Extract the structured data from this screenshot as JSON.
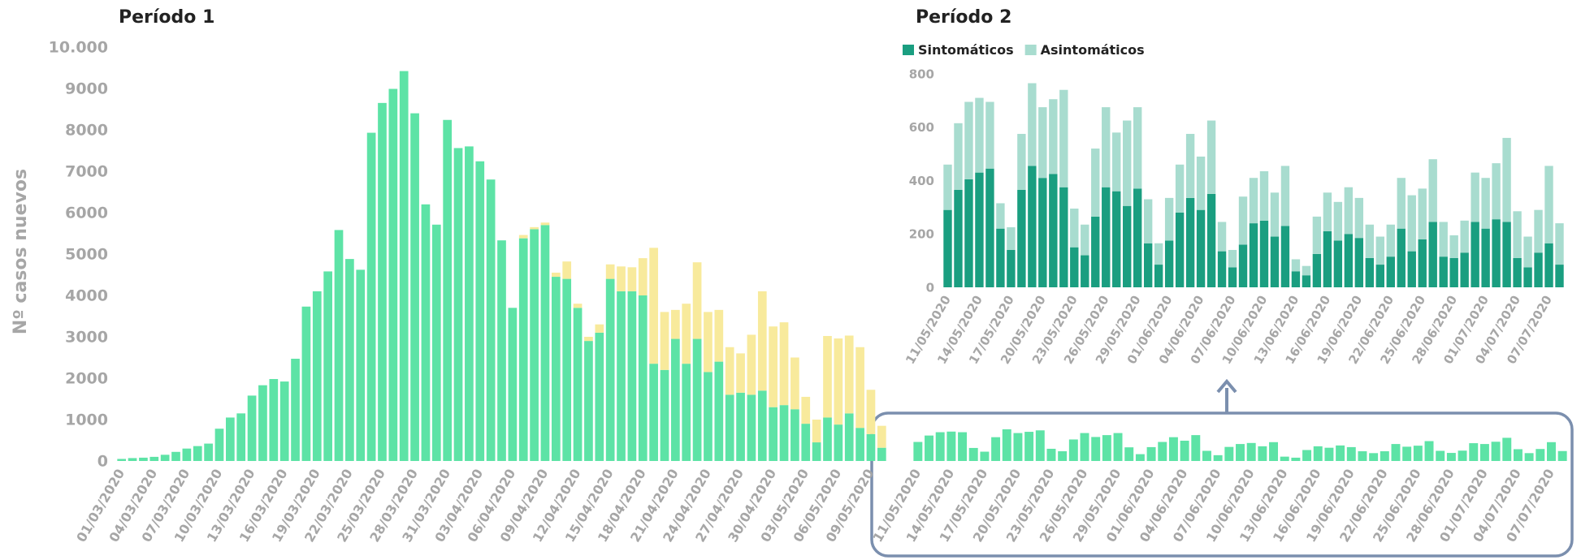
{
  "chart_data": [
    {
      "type": "bar",
      "stacked": true,
      "title": "Período 1",
      "y_label": "Nº casos nuevos",
      "categories": [
        "01/03/2020",
        null,
        null,
        "04/03/2020",
        null,
        null,
        "07/03/2020",
        null,
        null,
        "10/03/2020",
        null,
        null,
        "13/03/2020",
        null,
        null,
        "16/03/2020",
        null,
        null,
        "19/03/2020",
        null,
        null,
        "22/03/2020",
        null,
        null,
        "25/03/2020",
        null,
        null,
        "28/03/2020",
        null,
        null,
        "31/03/2020",
        null,
        null,
        "03/04/2020",
        null,
        null,
        "06/04/2020",
        null,
        null,
        "09/04/2020",
        null,
        null,
        "12/04/2020",
        null,
        null,
        "15/04/2020",
        null,
        null,
        "18/04/2020",
        null,
        null,
        "21/04/2020",
        null,
        null,
        "24/04/2020",
        null,
        null,
        "27/04/2020",
        null,
        null,
        "30/04/2020",
        null,
        null,
        "03/05/2020",
        null,
        null,
        "06/05/2020",
        null,
        null,
        "09/05/2020",
        null
      ],
      "series": [
        {
          "color": "#5de3a6",
          "values": [
            50,
            70,
            80,
            100,
            150,
            220,
            300,
            360,
            420,
            780,
            1050,
            1150,
            1580,
            1830,
            1980,
            1920,
            2470,
            3730,
            4100,
            4580,
            5580,
            4880,
            4620,
            7930,
            8650,
            8990,
            9420,
            8400,
            6200,
            5710,
            8240,
            7560,
            7600,
            7240,
            6800,
            5330,
            3700,
            5380,
            5600,
            5700,
            4450,
            4400,
            3700,
            2900,
            3100,
            4400,
            4100,
            4100,
            4000,
            2350,
            2200,
            2950,
            2350,
            2950,
            2150,
            2400,
            1600,
            1650,
            1600,
            1700,
            1300,
            1350,
            1250,
            900,
            450,
            1050,
            880,
            1150,
            800,
            650,
            320
          ]
        },
        {
          "color": "#f8ea9c",
          "values": [
            0,
            0,
            0,
            0,
            0,
            0,
            0,
            0,
            0,
            0,
            0,
            0,
            0,
            0,
            0,
            0,
            0,
            0,
            0,
            0,
            0,
            0,
            0,
            0,
            0,
            0,
            0,
            0,
            0,
            0,
            0,
            0,
            0,
            0,
            0,
            0,
            0,
            80,
            50,
            60,
            100,
            420,
            100,
            100,
            200,
            350,
            600,
            580,
            900,
            2800,
            1400,
            700,
            1450,
            1850,
            1450,
            1250,
            1150,
            950,
            1450,
            2400,
            1950,
            2000,
            1250,
            650,
            550,
            1970,
            2080,
            1880,
            1950,
            1070,
            530
          ]
        }
      ],
      "ylim": [
        0,
        10000
      ],
      "yticks": [
        0,
        1000,
        2000,
        3000,
        4000,
        5000,
        6000,
        7000,
        8000,
        9000,
        {
          "value": 10000,
          "label": "10.000"
        }
      ]
    },
    {
      "type": "bar",
      "stacked": true,
      "title": "Período 2",
      "legend": "top-left",
      "overview_color": "#5de3a6",
      "categories": [
        "11/05/2020",
        null,
        null,
        "14/05/2020",
        null,
        null,
        "17/05/2020",
        null,
        null,
        "20/05/2020",
        null,
        null,
        "23/05/2020",
        null,
        null,
        "26/05/2020",
        null,
        null,
        "29/05/2020",
        null,
        null,
        "01/06/2020",
        null,
        null,
        "04/06/2020",
        null,
        null,
        "07/06/2020",
        null,
        null,
        "10/06/2020",
        null,
        null,
        "13/06/2020",
        null,
        null,
        "16/06/2020",
        null,
        null,
        "19/06/2020",
        null,
        null,
        "22/06/2020",
        null,
        null,
        "25/06/2020",
        null,
        null,
        "28/06/2020",
        null,
        null,
        "01/07/2020",
        null,
        null,
        "04/07/2020",
        null,
        null,
        "07/07/2020",
        null
      ],
      "series": [
        {
          "name": "Sintomáticos",
          "color": "#1a9e80",
          "values": [
            290,
            365,
            405,
            430,
            445,
            220,
            140,
            365,
            455,
            410,
            425,
            375,
            150,
            120,
            265,
            375,
            360,
            305,
            370,
            165,
            85,
            175,
            280,
            335,
            290,
            350,
            135,
            75,
            160,
            240,
            250,
            190,
            230,
            60,
            45,
            125,
            210,
            175,
            200,
            185,
            110,
            85,
            115,
            220,
            135,
            180,
            245,
            115,
            110,
            130,
            245,
            220,
            255,
            245,
            110,
            75,
            130,
            165,
            85
          ]
        },
        {
          "name": "Asintomáticos",
          "color": "#a8dccf",
          "values": [
            170,
            250,
            290,
            280,
            250,
            95,
            85,
            210,
            310,
            265,
            280,
            365,
            145,
            115,
            255,
            300,
            220,
            320,
            305,
            165,
            80,
            160,
            180,
            240,
            200,
            275,
            110,
            65,
            180,
            170,
            185,
            165,
            225,
            45,
            35,
            140,
            145,
            145,
            175,
            150,
            125,
            105,
            120,
            190,
            210,
            190,
            235,
            130,
            85,
            120,
            185,
            190,
            210,
            315,
            175,
            115,
            160,
            290,
            155
          ]
        }
      ],
      "ylim": [
        0,
        800
      ],
      "yticks": [
        0,
        200,
        400,
        600,
        800
      ]
    }
  ]
}
